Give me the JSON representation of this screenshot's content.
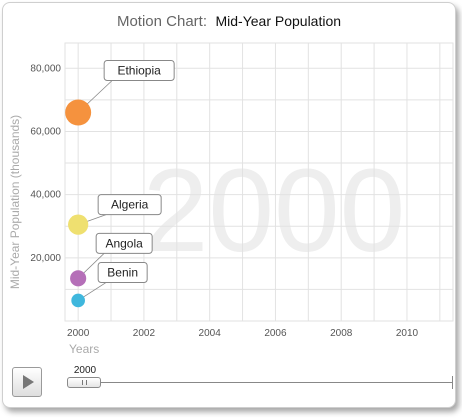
{
  "title": {
    "prefix": "Motion Chart:",
    "main": "Mid-Year Population"
  },
  "colors": {
    "grid": "#e2e2e2",
    "axis_text": "#555555",
    "axis_title": "#aaaaaa",
    "watermark": "#eeeeee"
  },
  "player": {
    "button_icon": "play-icon",
    "slider_value": "2000",
    "slider_position": 0
  },
  "chart_data": {
    "type": "scatter",
    "title": "Mid-Year Population",
    "xlabel": "Years",
    "ylabel": "Mid-Year Population (thousands)",
    "xlim": [
      1999.6,
      2011.4
    ],
    "ylim": [
      0,
      88000
    ],
    "x_ticks": [
      2000,
      2002,
      2004,
      2006,
      2008,
      2010
    ],
    "y_ticks": [
      20000,
      40000,
      60000,
      80000
    ],
    "y_tick_labels": [
      "20,000",
      "40,000",
      "60,000",
      "80,000"
    ],
    "grid": true,
    "current_year_watermark": "2000",
    "points": [
      {
        "name": "Ethiopia",
        "x": 2000,
        "y": 66000,
        "size": 66000,
        "color": "#f5923e"
      },
      {
        "name": "Algeria",
        "x": 2000,
        "y": 30500,
        "size": 30500,
        "color": "#efe070"
      },
      {
        "name": "Angola",
        "x": 2000,
        "y": 13500,
        "size": 13500,
        "color": "#b56fb8"
      },
      {
        "name": "Benin",
        "x": 2000,
        "y": 6500,
        "size": 6500,
        "color": "#3fb7dd"
      }
    ]
  }
}
